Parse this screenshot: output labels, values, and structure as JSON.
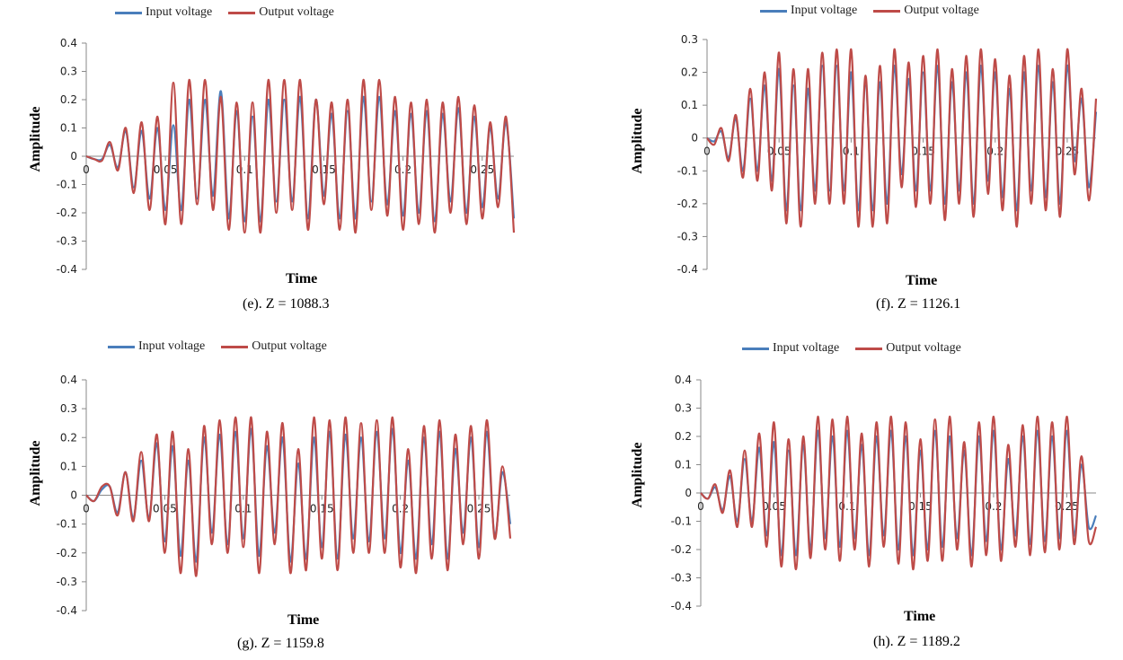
{
  "legend": {
    "input": "Input voltage",
    "output": "Output voltage"
  },
  "colors": {
    "input": "#4a7ebb",
    "output": "#be4b48"
  },
  "axis": {
    "xlabel": "Time",
    "ylabel": "Amplitude",
    "xticks": [
      "0",
      "0.05",
      "0.1",
      "0.15",
      "0.2",
      "0.25"
    ],
    "yticks": [
      "0.4",
      "0.3",
      "0.2",
      "0.1",
      "0",
      "-0.1",
      "-0.2",
      "-0.3",
      "-0.4"
    ]
  },
  "captions": {
    "e": "(e). Z = 1088.3",
    "f": "(f). Z = 1126.1",
    "g": "(g). Z = 1159.8",
    "h": "(h). Z = 1189.2"
  },
  "chart_data": [
    {
      "type": "line",
      "panel": "e",
      "xlabel": "Time",
      "ylabel": "Amplitude",
      "xlim": [
        0,
        0.27
      ],
      "ylim": [
        -0.4,
        0.4
      ],
      "grid": false,
      "legend_position": "top",
      "series": [
        {
          "name": "Input voltage",
          "x": [
            0,
            0.005,
            0.01,
            0.015,
            0.02,
            0.025,
            0.03,
            0.035,
            0.04,
            0.045,
            0.05,
            0.055,
            0.06,
            0.065,
            0.07,
            0.075,
            0.08,
            0.085,
            0.09,
            0.095,
            0.1,
            0.105,
            0.11,
            0.115,
            0.12,
            0.125,
            0.13,
            0.135,
            0.14,
            0.145,
            0.15,
            0.155,
            0.16,
            0.165,
            0.17,
            0.175,
            0.18,
            0.185,
            0.19,
            0.195,
            0.2,
            0.205,
            0.21,
            0.215,
            0.22,
            0.225,
            0.23,
            0.235,
            0.24,
            0.245,
            0.25,
            0.255,
            0.26,
            0.265,
            0.27
          ],
          "y": [
            0,
            -0.01,
            -0.01,
            0.04,
            -0.04,
            0.09,
            -0.11,
            0.09,
            -0.15,
            0.1,
            -0.19,
            0.11,
            -0.19,
            0.2,
            -0.15,
            0.2,
            -0.14,
            0.23,
            -0.22,
            0.16,
            -0.23,
            0.14,
            -0.23,
            0.2,
            -0.16,
            0.2,
            -0.16,
            0.21,
            -0.22,
            0.2,
            -0.14,
            0.15,
            -0.22,
            0.16,
            -0.22,
            0.21,
            -0.16,
            0.21,
            -0.17,
            0.16,
            -0.21,
            0.15,
            -0.2,
            0.16,
            -0.23,
            0.15,
            -0.16,
            0.17,
            -0.2,
            0.14,
            -0.18,
            0.1,
            -0.15,
            0.12,
            -0.22
          ]
        },
        {
          "name": "Output voltage",
          "x": [
            0,
            0.005,
            0.01,
            0.015,
            0.02,
            0.025,
            0.03,
            0.035,
            0.04,
            0.045,
            0.05,
            0.055,
            0.06,
            0.065,
            0.07,
            0.075,
            0.08,
            0.085,
            0.09,
            0.095,
            0.1,
            0.105,
            0.11,
            0.115,
            0.12,
            0.125,
            0.13,
            0.135,
            0.14,
            0.145,
            0.15,
            0.155,
            0.16,
            0.165,
            0.17,
            0.175,
            0.18,
            0.185,
            0.19,
            0.195,
            0.2,
            0.205,
            0.21,
            0.215,
            0.22,
            0.225,
            0.23,
            0.235,
            0.24,
            0.245,
            0.25,
            0.255,
            0.26,
            0.265,
            0.27
          ],
          "y": [
            0,
            -0.01,
            -0.015,
            0.05,
            -0.05,
            0.1,
            -0.13,
            0.12,
            -0.19,
            0.14,
            -0.24,
            0.26,
            -0.24,
            0.27,
            -0.17,
            0.27,
            -0.19,
            0.21,
            -0.26,
            0.19,
            -0.27,
            0.19,
            -0.27,
            0.27,
            -0.2,
            0.27,
            -0.19,
            0.27,
            -0.26,
            0.2,
            -0.17,
            0.19,
            -0.26,
            0.2,
            -0.27,
            0.27,
            -0.19,
            0.27,
            -0.21,
            0.21,
            -0.26,
            0.19,
            -0.24,
            0.2,
            -0.27,
            0.19,
            -0.2,
            0.21,
            -0.24,
            0.18,
            -0.22,
            0.12,
            -0.18,
            0.14,
            -0.27
          ]
        }
      ]
    },
    {
      "type": "line",
      "panel": "f",
      "xlabel": "Time",
      "ylabel": "Amplitude",
      "xlim": [
        0,
        0.27
      ],
      "ylim": [
        -0.4,
        0.3
      ],
      "grid": false,
      "legend_position": "top",
      "series": [
        {
          "name": "Input voltage",
          "x": [
            0,
            0.005,
            0.01,
            0.015,
            0.02,
            0.025,
            0.03,
            0.035,
            0.04,
            0.045,
            0.05,
            0.055,
            0.06,
            0.065,
            0.07,
            0.075,
            0.08,
            0.085,
            0.09,
            0.095,
            0.1,
            0.105,
            0.11,
            0.115,
            0.12,
            0.125,
            0.13,
            0.135,
            0.14,
            0.145,
            0.15,
            0.155,
            0.16,
            0.165,
            0.17,
            0.175,
            0.18,
            0.185,
            0.19,
            0.195,
            0.2,
            0.205,
            0.21,
            0.215,
            0.22,
            0.225,
            0.23,
            0.235,
            0.24,
            0.245,
            0.25,
            0.255,
            0.26,
            0.265,
            0.27
          ],
          "y": [
            0,
            -0.01,
            0.02,
            -0.06,
            0.06,
            -0.1,
            0.12,
            -0.1,
            0.16,
            -0.13,
            0.21,
            -0.22,
            0.16,
            -0.22,
            0.15,
            -0.16,
            0.22,
            -0.16,
            0.22,
            -0.16,
            0.2,
            -0.22,
            0.16,
            -0.22,
            0.17,
            -0.2,
            0.22,
            -0.11,
            0.18,
            -0.16,
            0.2,
            -0.16,
            0.22,
            -0.2,
            0.17,
            -0.16,
            0.2,
            -0.2,
            0.22,
            -0.13,
            0.2,
            -0.18,
            0.15,
            -0.22,
            0.2,
            -0.16,
            0.22,
            -0.18,
            0.17,
            -0.2,
            0.22,
            -0.07,
            0.12,
            -0.15,
            0.08
          ]
        },
        {
          "name": "Output voltage",
          "x": [
            0,
            0.005,
            0.01,
            0.015,
            0.02,
            0.025,
            0.03,
            0.035,
            0.04,
            0.045,
            0.05,
            0.055,
            0.06,
            0.065,
            0.07,
            0.075,
            0.08,
            0.085,
            0.09,
            0.095,
            0.1,
            0.105,
            0.11,
            0.115,
            0.12,
            0.125,
            0.13,
            0.135,
            0.14,
            0.145,
            0.15,
            0.155,
            0.16,
            0.165,
            0.17,
            0.175,
            0.18,
            0.185,
            0.19,
            0.195,
            0.2,
            0.205,
            0.21,
            0.215,
            0.22,
            0.225,
            0.23,
            0.235,
            0.24,
            0.245,
            0.25,
            0.255,
            0.26,
            0.265,
            0.27
          ],
          "y": [
            0,
            -0.02,
            0.03,
            -0.07,
            0.07,
            -0.12,
            0.15,
            -0.13,
            0.2,
            -0.16,
            0.26,
            -0.26,
            0.21,
            -0.27,
            0.21,
            -0.2,
            0.26,
            -0.2,
            0.27,
            -0.2,
            0.27,
            -0.27,
            0.19,
            -0.27,
            0.22,
            -0.26,
            0.27,
            -0.15,
            0.23,
            -0.21,
            0.25,
            -0.2,
            0.27,
            -0.25,
            0.21,
            -0.2,
            0.25,
            -0.24,
            0.27,
            -0.17,
            0.24,
            -0.22,
            0.19,
            -0.27,
            0.25,
            -0.2,
            0.27,
            -0.22,
            0.21,
            -0.24,
            0.27,
            -0.11,
            0.15,
            -0.19,
            0.12
          ]
        }
      ]
    },
    {
      "type": "line",
      "panel": "g",
      "xlabel": "Time",
      "ylabel": "Amplitude",
      "xlim": [
        0,
        0.27
      ],
      "ylim": [
        -0.4,
        0.4
      ],
      "grid": false,
      "legend_position": "top",
      "series": [
        {
          "name": "Input voltage",
          "x": [
            0,
            0.005,
            0.01,
            0.015,
            0.02,
            0.025,
            0.03,
            0.035,
            0.04,
            0.045,
            0.05,
            0.055,
            0.06,
            0.065,
            0.07,
            0.075,
            0.08,
            0.085,
            0.09,
            0.095,
            0.1,
            0.105,
            0.11,
            0.115,
            0.12,
            0.125,
            0.13,
            0.135,
            0.14,
            0.145,
            0.15,
            0.155,
            0.16,
            0.165,
            0.17,
            0.175,
            0.18,
            0.185,
            0.19,
            0.195,
            0.2,
            0.205,
            0.21,
            0.215,
            0.22,
            0.225,
            0.23,
            0.235,
            0.24,
            0.245,
            0.25,
            0.255,
            0.26,
            0.265,
            0.27
          ],
          "y": [
            0,
            -0.02,
            0.02,
            0.03,
            -0.06,
            0.08,
            -0.08,
            0.12,
            -0.08,
            0.18,
            -0.16,
            0.17,
            -0.21,
            0.12,
            -0.23,
            0.2,
            -0.13,
            0.21,
            -0.17,
            0.22,
            -0.15,
            0.23,
            -0.21,
            0.17,
            -0.13,
            0.2,
            -0.23,
            0.11,
            -0.22,
            0.2,
            -0.18,
            0.22,
            -0.22,
            0.21,
            -0.15,
            0.2,
            -0.16,
            0.22,
            -0.15,
            0.23,
            -0.2,
            0.12,
            -0.22,
            0.2,
            -0.17,
            0.22,
            -0.22,
            0.16,
            -0.13,
            0.2,
            -0.18,
            0.22,
            -0.14,
            0.08,
            -0.1
          ]
        },
        {
          "name": "Output voltage",
          "x": [
            0,
            0.005,
            0.01,
            0.015,
            0.02,
            0.025,
            0.03,
            0.035,
            0.04,
            0.045,
            0.05,
            0.055,
            0.06,
            0.065,
            0.07,
            0.075,
            0.08,
            0.085,
            0.09,
            0.095,
            0.1,
            0.105,
            0.11,
            0.115,
            0.12,
            0.125,
            0.13,
            0.135,
            0.14,
            0.145,
            0.15,
            0.155,
            0.16,
            0.165,
            0.17,
            0.175,
            0.18,
            0.185,
            0.19,
            0.195,
            0.2,
            0.205,
            0.21,
            0.215,
            0.22,
            0.225,
            0.23,
            0.235,
            0.24,
            0.245,
            0.25,
            0.255,
            0.26,
            0.265,
            0.27
          ],
          "y": [
            0,
            -0.02,
            0.03,
            0.03,
            -0.07,
            0.08,
            -0.09,
            0.15,
            -0.09,
            0.21,
            -0.2,
            0.22,
            -0.27,
            0.16,
            -0.28,
            0.24,
            -0.17,
            0.26,
            -0.2,
            0.27,
            -0.18,
            0.27,
            -0.27,
            0.22,
            -0.17,
            0.25,
            -0.27,
            0.16,
            -0.26,
            0.27,
            -0.22,
            0.26,
            -0.26,
            0.27,
            -0.2,
            0.25,
            -0.2,
            0.26,
            -0.2,
            0.27,
            -0.25,
            0.16,
            -0.27,
            0.24,
            -0.22,
            0.26,
            -0.26,
            0.21,
            -0.17,
            0.24,
            -0.22,
            0.26,
            -0.15,
            0.1,
            -0.15
          ]
        }
      ]
    },
    {
      "type": "line",
      "panel": "h",
      "xlabel": "Time",
      "ylabel": "Amplitude",
      "xlim": [
        0,
        0.27
      ],
      "ylim": [
        -0.4,
        0.4
      ],
      "grid": false,
      "legend_position": "top",
      "series": [
        {
          "name": "Input voltage",
          "x": [
            0,
            0.005,
            0.01,
            0.015,
            0.02,
            0.025,
            0.03,
            0.035,
            0.04,
            0.045,
            0.05,
            0.055,
            0.06,
            0.065,
            0.07,
            0.075,
            0.08,
            0.085,
            0.09,
            0.095,
            0.1,
            0.105,
            0.11,
            0.115,
            0.12,
            0.125,
            0.13,
            0.135,
            0.14,
            0.145,
            0.15,
            0.155,
            0.16,
            0.165,
            0.17,
            0.175,
            0.18,
            0.185,
            0.19,
            0.195,
            0.2,
            0.205,
            0.21,
            0.215,
            0.22,
            0.225,
            0.23,
            0.235,
            0.24,
            0.245,
            0.25,
            0.255,
            0.26,
            0.265,
            0.27
          ],
          "y": [
            0,
            -0.02,
            0.02,
            -0.06,
            0.06,
            -0.1,
            0.12,
            -0.1,
            0.16,
            -0.15,
            0.18,
            -0.22,
            0.15,
            -0.22,
            0.17,
            -0.2,
            0.22,
            -0.16,
            0.2,
            -0.19,
            0.22,
            -0.16,
            0.17,
            -0.22,
            0.2,
            -0.15,
            0.22,
            -0.2,
            0.2,
            -0.22,
            0.15,
            -0.2,
            0.22,
            -0.19,
            0.2,
            -0.16,
            0.15,
            -0.22,
            0.2,
            -0.17,
            0.22,
            -0.2,
            0.12,
            -0.15,
            0.2,
            -0.18,
            0.22,
            -0.17,
            0.2,
            -0.16,
            0.22,
            -0.15,
            0.1,
            -0.12,
            -0.08
          ]
        },
        {
          "name": "Output voltage",
          "x": [
            0,
            0.005,
            0.01,
            0.015,
            0.02,
            0.025,
            0.03,
            0.035,
            0.04,
            0.045,
            0.05,
            0.055,
            0.06,
            0.065,
            0.07,
            0.075,
            0.08,
            0.085,
            0.09,
            0.095,
            0.1,
            0.105,
            0.11,
            0.115,
            0.12,
            0.125,
            0.13,
            0.135,
            0.14,
            0.145,
            0.15,
            0.155,
            0.16,
            0.165,
            0.17,
            0.175,
            0.18,
            0.185,
            0.19,
            0.195,
            0.2,
            0.205,
            0.21,
            0.215,
            0.22,
            0.225,
            0.23,
            0.235,
            0.24,
            0.245,
            0.25,
            0.255,
            0.26,
            0.265,
            0.27
          ],
          "y": [
            0,
            -0.02,
            0.03,
            -0.07,
            0.08,
            -0.12,
            0.15,
            -0.12,
            0.21,
            -0.19,
            0.25,
            -0.26,
            0.19,
            -0.27,
            0.2,
            -0.23,
            0.27,
            -0.2,
            0.26,
            -0.24,
            0.27,
            -0.2,
            0.21,
            -0.26,
            0.25,
            -0.19,
            0.27,
            -0.25,
            0.25,
            -0.27,
            0.19,
            -0.24,
            0.26,
            -0.24,
            0.27,
            -0.2,
            0.18,
            -0.26,
            0.25,
            -0.22,
            0.27,
            -0.24,
            0.17,
            -0.19,
            0.24,
            -0.22,
            0.27,
            -0.21,
            0.25,
            -0.2,
            0.27,
            -0.18,
            0.13,
            -0.17,
            -0.12
          ]
        }
      ]
    }
  ]
}
